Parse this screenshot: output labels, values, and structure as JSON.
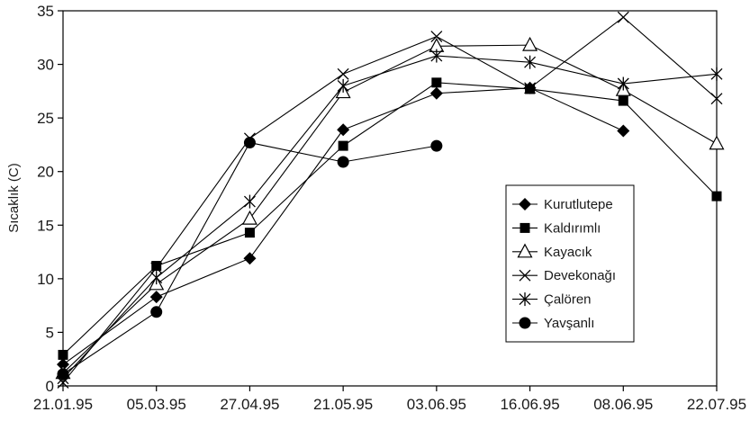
{
  "chart_data": {
    "type": "line",
    "ylabel": "Sıcaklık (C)",
    "xlabel": "",
    "categories": [
      "21.01.95",
      "05.03.95",
      "27.04.95",
      "21.05.95",
      "03.06.95",
      "16.06.95",
      "08.06.95",
      "22.07.95"
    ],
    "y_ticks": [
      "0",
      "5",
      "10",
      "15",
      "20",
      "25",
      "30",
      "35"
    ],
    "ylim": [
      0,
      35
    ],
    "grid": false,
    "legend_position": "right",
    "line_color": "#000000",
    "series": [
      {
        "name": "Kurutlutepe",
        "marker": "diamond",
        "values": [
          2.0,
          8.3,
          11.9,
          23.9,
          27.3,
          27.8,
          23.8,
          null
        ]
      },
      {
        "name": "Kaldırımlı",
        "marker": "square",
        "values": [
          2.9,
          11.2,
          14.3,
          22.4,
          28.3,
          27.7,
          26.6,
          17.7
        ]
      },
      {
        "name": "Kayacık",
        "marker": "triangle",
        "values": [
          1.2,
          9.5,
          15.6,
          27.4,
          31.7,
          31.8,
          27.6,
          22.6
        ]
      },
      {
        "name": "Devekonağı",
        "marker": "x",
        "values": [
          0.3,
          11.0,
          23.1,
          29.1,
          32.6,
          27.8,
          34.4,
          26.8
        ]
      },
      {
        "name": "Çalören",
        "marker": "asterisk",
        "values": [
          0.7,
          10.1,
          17.2,
          28.0,
          30.8,
          30.2,
          28.2,
          29.1
        ]
      },
      {
        "name": "Yavşanlı",
        "marker": "circle",
        "values": [
          1.1,
          6.9,
          22.7,
          20.9,
          22.4,
          null,
          null,
          null
        ]
      }
    ]
  }
}
